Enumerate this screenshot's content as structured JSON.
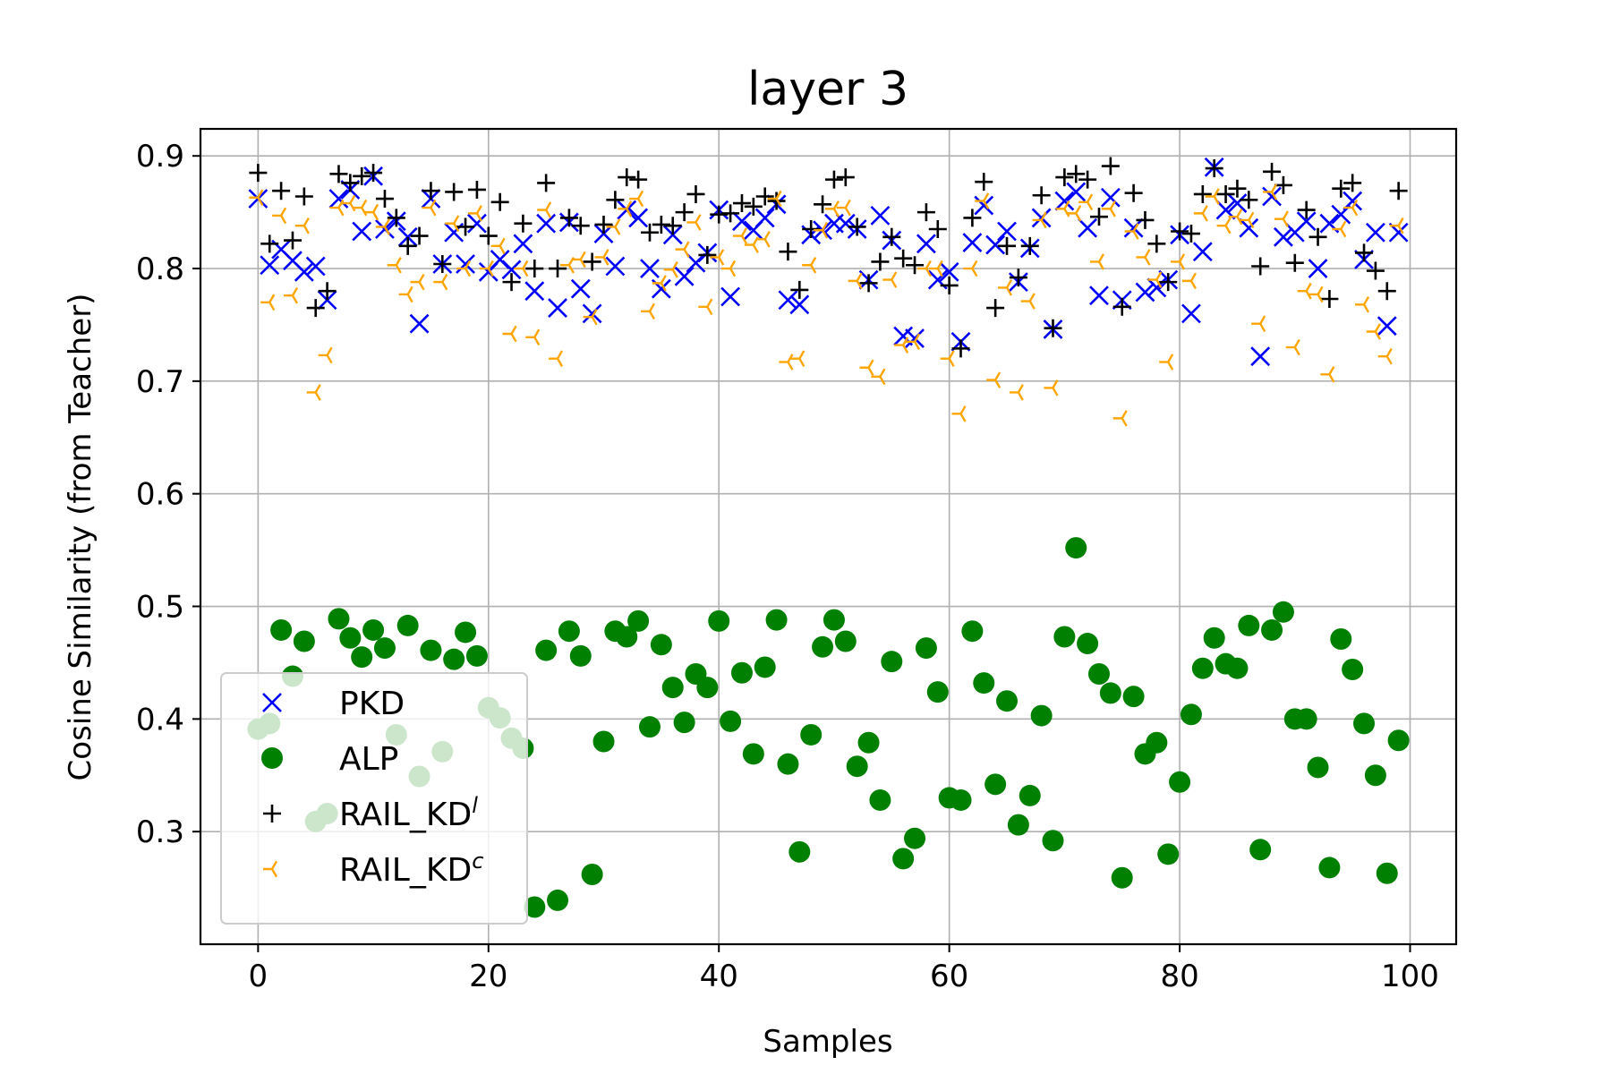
{
  "chart_data": {
    "type": "scatter",
    "title": "layer 3",
    "xlabel": "Samples",
    "ylabel": "Cosine Similarity (from Teacher)",
    "xlim": [
      -5,
      104
    ],
    "ylim": [
      0.2,
      0.924
    ],
    "xticks": [
      0,
      20,
      40,
      60,
      80,
      100
    ],
    "xtick_labels": [
      "0",
      "20",
      "40",
      "60",
      "80",
      "100"
    ],
    "yticks": [
      0.3,
      0.4,
      0.5,
      0.6,
      0.7,
      0.8,
      0.9
    ],
    "ytick_labels": [
      "0.3",
      "0.4",
      "0.5",
      "0.6",
      "0.7",
      "0.8",
      "0.9"
    ],
    "grid": true,
    "legend_position": "lower-left",
    "series": [
      {
        "name": "PKD",
        "marker": "x",
        "color": "#0000ff",
        "y": [
          0.862,
          0.803,
          0.817,
          0.807,
          0.797,
          0.802,
          0.772,
          0.862,
          0.87,
          0.833,
          0.882,
          0.835,
          0.842,
          0.828,
          0.751,
          0.862,
          0.804,
          0.832,
          0.804,
          0.84,
          0.797,
          0.808,
          0.799,
          0.822,
          0.78,
          0.84,
          0.765,
          0.841,
          0.782,
          0.76,
          0.831,
          0.802,
          0.852,
          0.845,
          0.8,
          0.782,
          0.83,
          0.793,
          0.805,
          0.814,
          0.852,
          0.775,
          0.842,
          0.834,
          0.845,
          0.857,
          0.772,
          0.768,
          0.83,
          0.834,
          0.84,
          0.84,
          0.835,
          0.79,
          0.847,
          0.825,
          0.74,
          0.738,
          0.822,
          0.79,
          0.797,
          0.735,
          0.823,
          0.856,
          0.821,
          0.833,
          0.788,
          0.818,
          0.845,
          0.746,
          0.86,
          0.868,
          0.836,
          0.776,
          0.863,
          0.772,
          0.836,
          0.779,
          0.783,
          0.79,
          0.83,
          0.76,
          0.815,
          0.89,
          0.852,
          0.858,
          0.836,
          0.722,
          0.864,
          0.828,
          0.832,
          0.842,
          0.8,
          0.84,
          0.848,
          0.86,
          0.808,
          0.832,
          0.749,
          0.832
        ]
      },
      {
        "name": "ALP",
        "marker": "o",
        "color": "#008000",
        "y": [
          0.391,
          0.396,
          0.479,
          0.438,
          0.469,
          0.309,
          0.316,
          0.489,
          0.472,
          0.455,
          0.479,
          0.463,
          0.386,
          0.483,
          0.349,
          0.461,
          0.371,
          0.453,
          0.477,
          0.456,
          0.41,
          0.401,
          0.383,
          0.374,
          0.233,
          0.461,
          0.239,
          0.478,
          0.456,
          0.262,
          0.38,
          0.478,
          0.473,
          0.487,
          0.393,
          0.466,
          0.428,
          0.397,
          0.44,
          0.428,
          0.487,
          0.398,
          0.441,
          0.369,
          0.446,
          0.488,
          0.36,
          0.282,
          0.386,
          0.464,
          0.488,
          0.469,
          0.358,
          0.379,
          0.328,
          0.451,
          0.276,
          0.294,
          0.463,
          0.424,
          0.33,
          0.328,
          0.478,
          0.432,
          0.342,
          0.416,
          0.306,
          0.332,
          0.403,
          0.292,
          0.473,
          0.552,
          0.467,
          0.44,
          0.423,
          0.259,
          0.42,
          0.369,
          0.379,
          0.28,
          0.344,
          0.404,
          0.445,
          0.472,
          0.449,
          0.445,
          0.483,
          0.284,
          0.479,
          0.495,
          0.4,
          0.4,
          0.357,
          0.268,
          0.471,
          0.444,
          0.396,
          0.35,
          0.263,
          0.381
        ]
      },
      {
        "name": "RAIL_KD",
        "name_superscript": "l",
        "marker": "+",
        "color": "#000000",
        "y": [
          0.885,
          0.822,
          0.869,
          0.825,
          0.864,
          0.765,
          0.78,
          0.884,
          0.876,
          0.882,
          0.885,
          0.862,
          0.845,
          0.82,
          0.829,
          0.869,
          0.804,
          0.868,
          0.837,
          0.87,
          0.829,
          0.859,
          0.788,
          0.84,
          0.8,
          0.876,
          0.8,
          0.845,
          0.838,
          0.806,
          0.839,
          0.861,
          0.881,
          0.879,
          0.832,
          0.839,
          0.838,
          0.85,
          0.866,
          0.812,
          0.848,
          0.849,
          0.858,
          0.855,
          0.864,
          0.86,
          0.815,
          0.781,
          0.835,
          0.857,
          0.879,
          0.881,
          0.837,
          0.787,
          0.806,
          0.828,
          0.809,
          0.803,
          0.85,
          0.835,
          0.785,
          0.729,
          0.845,
          0.877,
          0.765,
          0.82,
          0.792,
          0.82,
          0.865,
          0.747,
          0.881,
          0.884,
          0.879,
          0.846,
          0.891,
          0.766,
          0.867,
          0.843,
          0.822,
          0.788,
          0.833,
          0.831,
          0.866,
          0.889,
          0.866,
          0.871,
          0.861,
          0.802,
          0.886,
          0.874,
          0.805,
          0.852,
          0.828,
          0.773,
          0.871,
          0.876,
          0.814,
          0.798,
          0.78,
          0.869
        ]
      },
      {
        "name": "RAIL_KD",
        "name_superscript": "c",
        "marker": "tri_left",
        "color": "#ffa500",
        "y": [
          0.863,
          0.77,
          0.847,
          0.776,
          0.838,
          0.69,
          0.723,
          0.854,
          0.858,
          0.854,
          0.85,
          0.837,
          0.803,
          0.777,
          0.788,
          0.854,
          0.788,
          0.84,
          0.8,
          0.849,
          0.8,
          0.82,
          0.742,
          0.8,
          0.739,
          0.852,
          0.72,
          0.803,
          0.808,
          0.757,
          0.81,
          0.837,
          0.853,
          0.862,
          0.762,
          0.787,
          0.799,
          0.817,
          0.841,
          0.766,
          0.81,
          0.8,
          0.829,
          0.821,
          0.826,
          0.862,
          0.717,
          0.72,
          0.803,
          0.834,
          0.853,
          0.854,
          0.789,
          0.712,
          0.704,
          0.79,
          0.732,
          0.735,
          0.8,
          0.8,
          0.72,
          0.671,
          0.8,
          0.86,
          0.701,
          0.783,
          0.69,
          0.771,
          0.843,
          0.694,
          0.853,
          0.849,
          0.859,
          0.806,
          0.853,
          0.667,
          0.833,
          0.81,
          0.79,
          0.717,
          0.806,
          0.789,
          0.849,
          0.864,
          0.838,
          0.846,
          0.843,
          0.751,
          0.868,
          0.844,
          0.73,
          0.78,
          0.777,
          0.706,
          0.835,
          0.854,
          0.768,
          0.744,
          0.722,
          0.838
        ]
      }
    ]
  }
}
